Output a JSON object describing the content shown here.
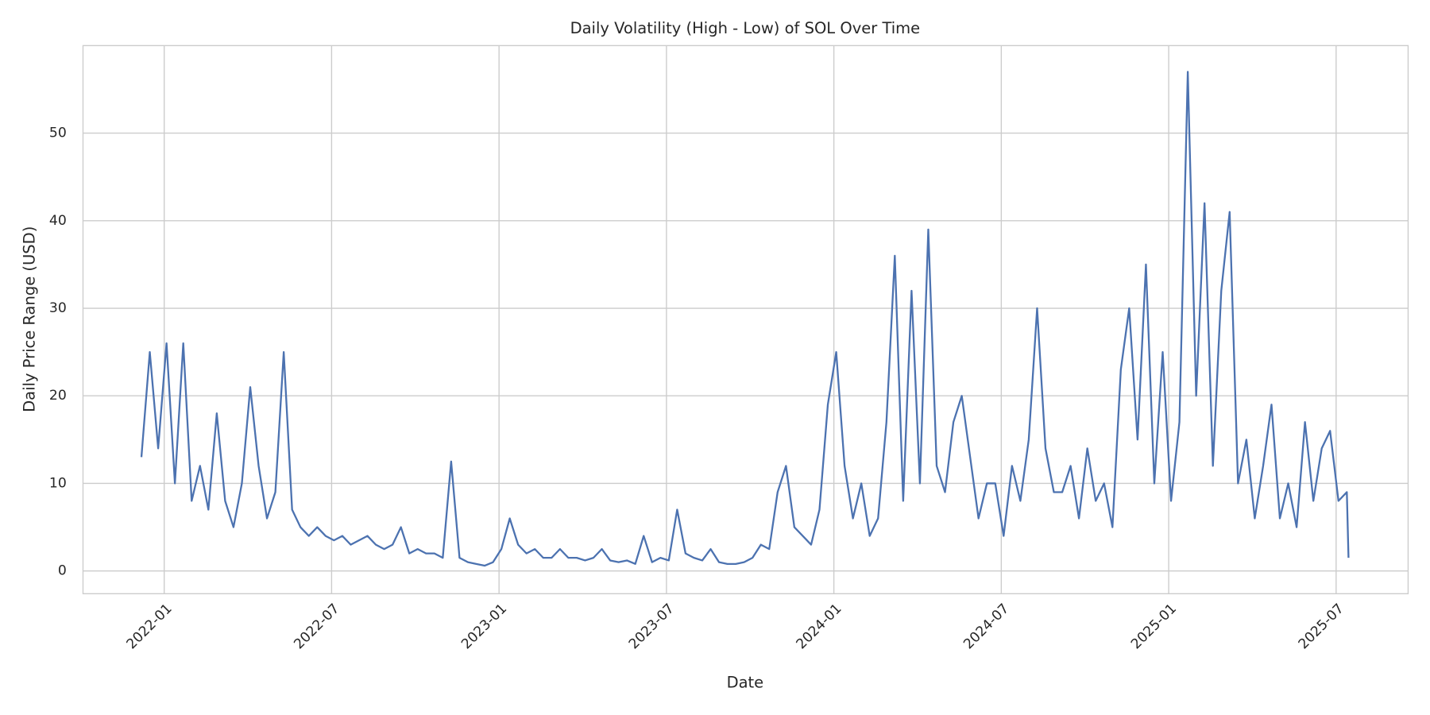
{
  "chart_data": {
    "type": "line",
    "title": "Daily Volatility (High - Low) of SOL Over Time",
    "x_label": "Date",
    "y_label": "Daily Price Range (USD)",
    "grid": true,
    "xlim": [
      2021.7575,
      2025.715
    ],
    "ylim": [
      -2.6,
      60
    ],
    "xticks": [
      {
        "value": 2022.0,
        "label": "2022-01"
      },
      {
        "value": 2022.5,
        "label": "2022-07"
      },
      {
        "value": 2023.0,
        "label": "2023-01"
      },
      {
        "value": 2023.5,
        "label": "2023-07"
      },
      {
        "value": 2024.0,
        "label": "2024-01"
      },
      {
        "value": 2024.5,
        "label": "2024-07"
      },
      {
        "value": 2025.0,
        "label": "2025-01"
      },
      {
        "value": 2025.5,
        "label": "2025-07"
      }
    ],
    "yticks": [
      0,
      10,
      20,
      30,
      40,
      50
    ],
    "x": [
      2021.932,
      2021.957,
      2021.982,
      2022.007,
      2022.032,
      2022.057,
      2022.082,
      2022.107,
      2022.132,
      2022.157,
      2022.182,
      2022.207,
      2022.232,
      2022.257,
      2022.282,
      2022.307,
      2022.332,
      2022.357,
      2022.382,
      2022.407,
      2022.432,
      2022.457,
      2022.482,
      2022.507,
      2022.532,
      2022.557,
      2022.582,
      2022.607,
      2022.632,
      2022.657,
      2022.682,
      2022.707,
      2022.732,
      2022.757,
      2022.782,
      2022.807,
      2022.832,
      2022.857,
      2022.882,
      2022.907,
      2022.932,
      2022.957,
      2022.982,
      2023.007,
      2023.032,
      2023.057,
      2023.082,
      2023.107,
      2023.132,
      2023.157,
      2023.182,
      2023.207,
      2023.232,
      2023.257,
      2023.282,
      2023.307,
      2023.332,
      2023.357,
      2023.382,
      2023.407,
      2023.432,
      2023.457,
      2023.482,
      2023.507,
      2023.532,
      2023.557,
      2023.582,
      2023.607,
      2023.632,
      2023.657,
      2023.682,
      2023.707,
      2023.732,
      2023.757,
      2023.782,
      2023.807,
      2023.832,
      2023.857,
      2023.882,
      2023.907,
      2023.932,
      2023.957,
      2023.982,
      2024.007,
      2024.032,
      2024.057,
      2024.082,
      2024.107,
      2024.132,
      2024.157,
      2024.182,
      2024.207,
      2024.232,
      2024.257,
      2024.282,
      2024.307,
      2024.332,
      2024.357,
      2024.382,
      2024.407,
      2024.432,
      2024.457,
      2024.482,
      2024.507,
      2024.532,
      2024.557,
      2024.582,
      2024.607,
      2024.632,
      2024.657,
      2024.682,
      2024.707,
      2024.732,
      2024.757,
      2024.782,
      2024.807,
      2024.832,
      2024.857,
      2024.882,
      2024.907,
      2024.932,
      2024.957,
      2024.982,
      2025.007,
      2025.032,
      2025.057,
      2025.082,
      2025.107,
      2025.132,
      2025.157,
      2025.182,
      2025.207,
      2025.232,
      2025.257,
      2025.282,
      2025.307,
      2025.332,
      2025.357,
      2025.382,
      2025.407,
      2025.432,
      2025.457,
      2025.482,
      2025.507,
      2025.532,
      2025.537
    ],
    "series": [
      {
        "name": "Daily Price Range",
        "color": "#4c72b0",
        "values": [
          13,
          25,
          14,
          26,
          10,
          26,
          8,
          12,
          7,
          18,
          8,
          5,
          10,
          21,
          12,
          6,
          9,
          25,
          7,
          5,
          4,
          5,
          4,
          3.5,
          4,
          3,
          3.5,
          4,
          3,
          2.5,
          3,
          5,
          2,
          2.5,
          2,
          2,
          1.5,
          12.5,
          1.5,
          1,
          0.8,
          0.6,
          1,
          2.5,
          6,
          3,
          2,
          2.5,
          1.5,
          1.5,
          2.5,
          1.5,
          1.5,
          1.2,
          1.5,
          2.5,
          1.2,
          1,
          1.2,
          0.8,
          4,
          1,
          1.5,
          1.2,
          7,
          2,
          1.5,
          1.2,
          2.5,
          1,
          0.8,
          0.8,
          1,
          1.5,
          3,
          2.5,
          9,
          12,
          5,
          4,
          3,
          7,
          19,
          25,
          12,
          6,
          10,
          4,
          6,
          17,
          36,
          8,
          32,
          10,
          39,
          12,
          9,
          17,
          20,
          13,
          6,
          10,
          10,
          4,
          12,
          8,
          15,
          30,
          14,
          9,
          9,
          12,
          6,
          14,
          8,
          10,
          5,
          23,
          30,
          15,
          35,
          10,
          25,
          8,
          17,
          57,
          20,
          42,
          12,
          32,
          41,
          10,
          15,
          6,
          12,
          19,
          6,
          10,
          5,
          17,
          8,
          14,
          16,
          8,
          9,
          1.5
        ]
      }
    ]
  }
}
